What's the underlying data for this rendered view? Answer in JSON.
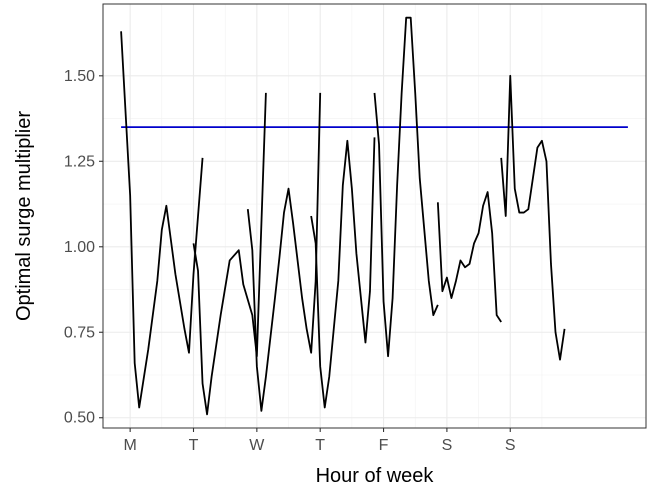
{
  "chart_data": {
    "type": "line",
    "xlabel": "Hour of week",
    "ylabel": "Optimal surge multiplier",
    "x_ticks": [
      "M",
      "T",
      "W",
      "T",
      "F",
      "S",
      "S"
    ],
    "y_ticks": [
      "0.50",
      "0.75",
      "1.00",
      "1.25",
      "1.50"
    ],
    "xlim": [
      -2,
      58
    ],
    "ylim": [
      0.47,
      1.71
    ],
    "grid": true,
    "reference_line": {
      "y": 1.35,
      "x_range": [
        0,
        56
      ],
      "color": "#0000cc"
    },
    "series_color": "#000000",
    "segments": [
      [
        [
          0,
          1.63
        ],
        [
          1,
          1.15
        ],
        [
          1.5,
          0.66
        ],
        [
          2,
          0.53
        ],
        [
          3,
          0.7
        ],
        [
          4,
          0.9
        ],
        [
          4.5,
          1.05
        ],
        [
          5,
          1.12
        ],
        [
          5.5,
          1.02
        ],
        [
          6,
          0.92
        ],
        [
          7,
          0.76
        ],
        [
          7.5,
          0.69
        ],
        [
          8,
          0.92
        ],
        [
          9,
          1.26
        ]
      ],
      [
        [
          8,
          1.01
        ],
        [
          8.5,
          0.93
        ],
        [
          9,
          0.6
        ],
        [
          9.5,
          0.51
        ],
        [
          10,
          0.62
        ],
        [
          11,
          0.8
        ],
        [
          12,
          0.96
        ],
        [
          13,
          0.99
        ],
        [
          13.5,
          0.89
        ],
        [
          14.5,
          0.8
        ],
        [
          15,
          0.68
        ],
        [
          16,
          1.45
        ]
      ],
      [
        [
          14,
          1.11
        ],
        [
          14.5,
          0.99
        ],
        [
          15,
          0.65
        ],
        [
          15.5,
          0.52
        ],
        [
          16,
          0.62
        ],
        [
          17,
          0.85
        ],
        [
          17.5,
          0.97
        ],
        [
          18,
          1.1
        ],
        [
          18.5,
          1.17
        ],
        [
          19,
          1.07
        ],
        [
          20,
          0.85
        ],
        [
          20.5,
          0.76
        ],
        [
          21,
          0.69
        ],
        [
          21.5,
          0.9
        ],
        [
          22,
          1.45
        ]
      ],
      [
        [
          21,
          1.09
        ],
        [
          21.5,
          1.01
        ],
        [
          22,
          0.65
        ],
        [
          22.5,
          0.53
        ],
        [
          23,
          0.62
        ],
        [
          24,
          0.9
        ],
        [
          24.5,
          1.18
        ],
        [
          25,
          1.31
        ],
        [
          25.5,
          1.17
        ],
        [
          26,
          0.98
        ],
        [
          27,
          0.72
        ],
        [
          27.5,
          0.87
        ],
        [
          28,
          1.32
        ]
      ],
      [
        [
          28,
          1.45
        ],
        [
          28.5,
          1.3
        ],
        [
          29,
          0.84
        ],
        [
          29.5,
          0.68
        ],
        [
          30,
          0.85
        ],
        [
          30.5,
          1.18
        ],
        [
          31,
          1.45
        ],
        [
          31.5,
          1.67
        ],
        [
          32,
          1.67
        ],
        [
          32.5,
          1.45
        ],
        [
          33,
          1.2
        ],
        [
          34,
          0.9
        ],
        [
          34.5,
          0.8
        ],
        [
          35,
          0.83
        ]
      ],
      [
        [
          35,
          1.13
        ],
        [
          35.5,
          0.87
        ],
        [
          36,
          0.91
        ],
        [
          36.5,
          0.85
        ],
        [
          37,
          0.9
        ],
        [
          37.5,
          0.96
        ],
        [
          38,
          0.94
        ],
        [
          38.5,
          0.95
        ],
        [
          39,
          1.01
        ],
        [
          39.5,
          1.04
        ],
        [
          40,
          1.12
        ],
        [
          40.5,
          1.16
        ],
        [
          41,
          1.04
        ],
        [
          41.5,
          0.8
        ],
        [
          42,
          0.78
        ]
      ],
      [
        [
          42,
          1.26
        ],
        [
          42.5,
          1.09
        ],
        [
          43,
          1.5
        ],
        [
          43.5,
          1.17
        ],
        [
          44,
          1.1
        ],
        [
          44.5,
          1.1
        ],
        [
          45,
          1.11
        ],
        [
          46,
          1.29
        ],
        [
          46.5,
          1.31
        ],
        [
          47,
          1.25
        ],
        [
          47.5,
          0.95
        ],
        [
          48,
          0.75
        ],
        [
          48.5,
          0.67
        ],
        [
          49,
          0.76
        ]
      ]
    ]
  }
}
